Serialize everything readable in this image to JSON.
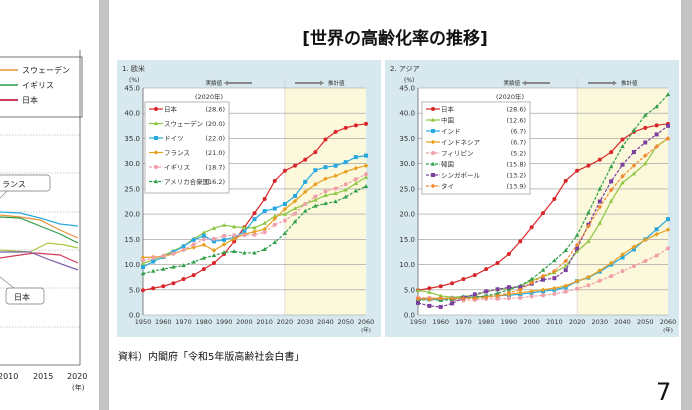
{
  "left_slide": {
    "legend": [
      {
        "label": "スウェーデン",
        "color": "#e8923a"
      },
      {
        "label": "イギリス",
        "color": "#2e9e48"
      },
      {
        "label": "日本",
        "color": "#d23a5a"
      }
    ],
    "callouts": [
      "ランス",
      "日本"
    ],
    "x_ticks": [
      "2010",
      "2015",
      "2020"
    ],
    "x_unit": "(年)"
  },
  "slide": {
    "title": "[世界の高齢化率の推移]",
    "source": "資料）内閣府「令和5年版高齢社会白書」",
    "page_number": "7"
  },
  "chart_data": [
    {
      "type": "line",
      "panel_label": "1. 欧米",
      "ylabel": "(%)",
      "xlabel": "(年)",
      "ylim": [
        0,
        45
      ],
      "yticks": [
        "0.0",
        "5.0",
        "10.0",
        "15.0",
        "20.0",
        "25.0",
        "30.0",
        "35.0",
        "40.0",
        "45.0"
      ],
      "x": [
        1950,
        1955,
        1960,
        1965,
        1970,
        1975,
        1980,
        1985,
        1990,
        1995,
        2000,
        2005,
        2010,
        2015,
        2020,
        2025,
        2030,
        2035,
        2040,
        2045,
        2050,
        2055,
        2060
      ],
      "xticks": [
        "1950",
        "1960",
        "1970",
        "1980",
        "1990",
        "2000",
        "2010",
        "2020",
        "2030",
        "2040",
        "2050",
        "2060"
      ],
      "actual_label": "実績値",
      "forecast_label": "推計値",
      "forecast_from": 2020,
      "forecast_shading_color": "#fbf8dc",
      "grid": true,
      "legend_title": "(2020年)",
      "legend_placement": "top-left",
      "series": [
        {
          "name": "日本",
          "value_2020": "(28.6)",
          "color": "#d9262b",
          "marker": "circle",
          "dashed": false,
          "values": [
            4.9,
            5.3,
            5.7,
            6.3,
            7.1,
            7.9,
            9.1,
            10.3,
            12.1,
            14.6,
            17.4,
            20.2,
            23.0,
            26.6,
            28.6,
            29.6,
            30.8,
            32.3,
            34.8,
            36.3,
            37.1,
            37.6,
            37.9
          ]
        },
        {
          "name": "スウェーデン",
          "value_2020": "(20.0)",
          "color": "#8dc63f",
          "marker": "triangle",
          "dashed": false,
          "values": [
            10.2,
            11.0,
            11.8,
            12.7,
            13.7,
            15.1,
            16.3,
            17.2,
            17.8,
            17.5,
            17.3,
            17.3,
            18.2,
            19.6,
            20.0,
            21.1,
            22.0,
            22.8,
            23.7,
            24.1,
            24.8,
            26.1,
            27.3
          ]
        },
        {
          "name": "ドイツ",
          "value_2020": "(22.0)",
          "color": "#29a8e0",
          "marker": "square",
          "dashed": false,
          "values": [
            9.5,
            10.6,
            11.5,
            12.5,
            13.6,
            14.9,
            15.7,
            14.6,
            14.9,
            15.4,
            16.5,
            19.0,
            20.6,
            21.1,
            22.0,
            23.6,
            26.4,
            28.7,
            29.3,
            29.6,
            30.3,
            31.3,
            31.6
          ]
        },
        {
          "name": "フランス",
          "value_2020": "(21.0)",
          "color": "#e8a020",
          "marker": "diamond",
          "dashed": false,
          "values": [
            11.4,
            11.5,
            11.6,
            12.1,
            12.9,
            13.4,
            13.9,
            12.8,
            14.0,
            15.1,
            16.0,
            16.5,
            17.0,
            19.1,
            21.0,
            22.6,
            24.4,
            25.9,
            27.0,
            27.6,
            28.4,
            29.1,
            29.6
          ]
        },
        {
          "name": "イギリス",
          "value_2020": "(18.7)",
          "color": "#f0a0a8",
          "marker": "circle",
          "dashed": true,
          "values": [
            10.8,
            11.3,
            11.7,
            12.2,
            12.9,
            14.0,
            15.0,
            15.1,
            15.7,
            15.8,
            15.8,
            15.9,
            16.4,
            17.9,
            18.7,
            20.1,
            22.0,
            23.5,
            24.5,
            25.1,
            25.9,
            26.9,
            27.9
          ]
        },
        {
          "name": "アメリカ合衆国",
          "value_2020": "(16.2)",
          "color": "#2e9e48",
          "marker": "triangle",
          "dashed": true,
          "values": [
            8.2,
            8.7,
            9.1,
            9.5,
            9.8,
            10.5,
            11.3,
            11.8,
            12.4,
            12.6,
            12.3,
            12.3,
            13.0,
            14.4,
            16.2,
            18.5,
            20.6,
            21.6,
            22.1,
            22.5,
            23.4,
            24.6,
            25.5
          ]
        }
      ]
    },
    {
      "type": "line",
      "panel_label": "2. アジア",
      "ylabel": "(%)",
      "xlabel": "(年)",
      "ylim": [
        0,
        45
      ],
      "yticks": [
        "0.0",
        "5.0",
        "10.0",
        "15.0",
        "20.0",
        "25.0",
        "30.0",
        "35.0",
        "40.0",
        "45.0"
      ],
      "x": [
        1950,
        1955,
        1960,
        1965,
        1970,
        1975,
        1980,
        1985,
        1990,
        1995,
        2000,
        2005,
        2010,
        2015,
        2020,
        2025,
        2030,
        2035,
        2040,
        2045,
        2050,
        2055,
        2060
      ],
      "xticks": [
        "1950",
        "1960",
        "1970",
        "1980",
        "1990",
        "2000",
        "2010",
        "2020",
        "2030",
        "2040",
        "2050",
        "2060"
      ],
      "actual_label": "実績値",
      "forecast_label": "推計値",
      "forecast_from": 2020,
      "forecast_shading_color": "#fbf8dc",
      "grid": true,
      "legend_title": "(2020年)",
      "legend_placement": "top-left",
      "series": [
        {
          "name": "日本",
          "value_2020": "(28.6)",
          "color": "#d9262b",
          "marker": "circle",
          "dashed": false,
          "values": [
            4.9,
            5.3,
            5.7,
            6.3,
            7.1,
            7.9,
            9.1,
            10.3,
            12.1,
            14.6,
            17.4,
            20.2,
            23.0,
            26.6,
            28.6,
            29.6,
            30.8,
            32.3,
            34.8,
            36.3,
            37.1,
            37.6,
            37.9
          ]
        },
        {
          "name": "中国",
          "value_2020": "(12.6)",
          "color": "#8dc63f",
          "marker": "triangle",
          "dashed": false,
          "values": [
            4.9,
            4.5,
            3.8,
            3.5,
            3.7,
            3.9,
            4.6,
            5.1,
            5.3,
            5.7,
            6.9,
            7.6,
            8.4,
            9.7,
            12.6,
            14.6,
            18.2,
            22.6,
            26.2,
            28.0,
            30.0,
            33.5,
            35.0
          ]
        },
        {
          "name": "インド",
          "value_2020": "(6.7)",
          "color": "#29a8e0",
          "marker": "square",
          "dashed": false,
          "values": [
            3.1,
            3.1,
            3.1,
            3.3,
            3.5,
            3.6,
            3.7,
            3.8,
            3.9,
            4.1,
            4.4,
            4.7,
            5.0,
            5.5,
            6.7,
            7.4,
            8.6,
            10.0,
            11.4,
            13.0,
            15.0,
            17.0,
            19.0
          ]
        },
        {
          "name": "インドネシア",
          "value_2020": "(6.7)",
          "color": "#e8a020",
          "marker": "diamond",
          "dashed": false,
          "values": [
            3.2,
            3.4,
            3.3,
            3.3,
            3.4,
            3.5,
            3.7,
            3.8,
            4.1,
            4.4,
            4.7,
            5.0,
            5.3,
            5.8,
            6.7,
            7.5,
            8.8,
            10.3,
            12.0,
            13.5,
            14.9,
            16.0,
            16.9
          ]
        },
        {
          "name": "フィリピン",
          "value_2020": "(5.2)",
          "color": "#f0a0a8",
          "marker": "circle",
          "dashed": true,
          "values": [
            3.5,
            3.4,
            3.1,
            2.9,
            2.9,
            3.0,
            3.2,
            3.2,
            3.3,
            3.4,
            3.7,
            3.9,
            4.2,
            4.6,
            5.2,
            5.9,
            6.8,
            7.7,
            8.7,
            9.7,
            10.7,
            11.8,
            13.2
          ]
        },
        {
          "name": "韓国",
          "value_2020": "(15.8)",
          "color": "#2e9e48",
          "marker": "triangle",
          "dashed": true,
          "values": [
            2.9,
            3.1,
            2.9,
            3.1,
            3.3,
            3.5,
            3.8,
            4.3,
            5.0,
            5.8,
            7.1,
            8.9,
            10.8,
            12.8,
            15.8,
            20.3,
            25.0,
            29.4,
            33.4,
            36.6,
            39.6,
            41.3,
            43.7
          ]
        },
        {
          "name": "シンガポール",
          "value_2020": "(13.2)",
          "color": "#7b3f9e",
          "marker": "square",
          "dashed": true,
          "values": [
            2.4,
            1.8,
            1.6,
            2.3,
            3.4,
            4.1,
            4.7,
            5.1,
            5.5,
            5.5,
            6.2,
            7.0,
            7.3,
            8.9,
            13.2,
            17.9,
            22.5,
            26.5,
            29.8,
            32.3,
            34.2,
            35.8,
            37.5
          ]
        },
        {
          "name": "タイ",
          "value_2020": "(13.9)",
          "color": "#f08a30",
          "marker": "diamond",
          "dashed": true,
          "values": [
            3.2,
            3.1,
            3.3,
            3.3,
            3.3,
            3.3,
            3.5,
            3.8,
            4.4,
            5.0,
            6.4,
            7.7,
            8.7,
            10.7,
            13.9,
            17.6,
            21.4,
            24.8,
            27.5,
            29.6,
            31.6,
            33.4,
            35.0
          ]
        }
      ]
    }
  ]
}
